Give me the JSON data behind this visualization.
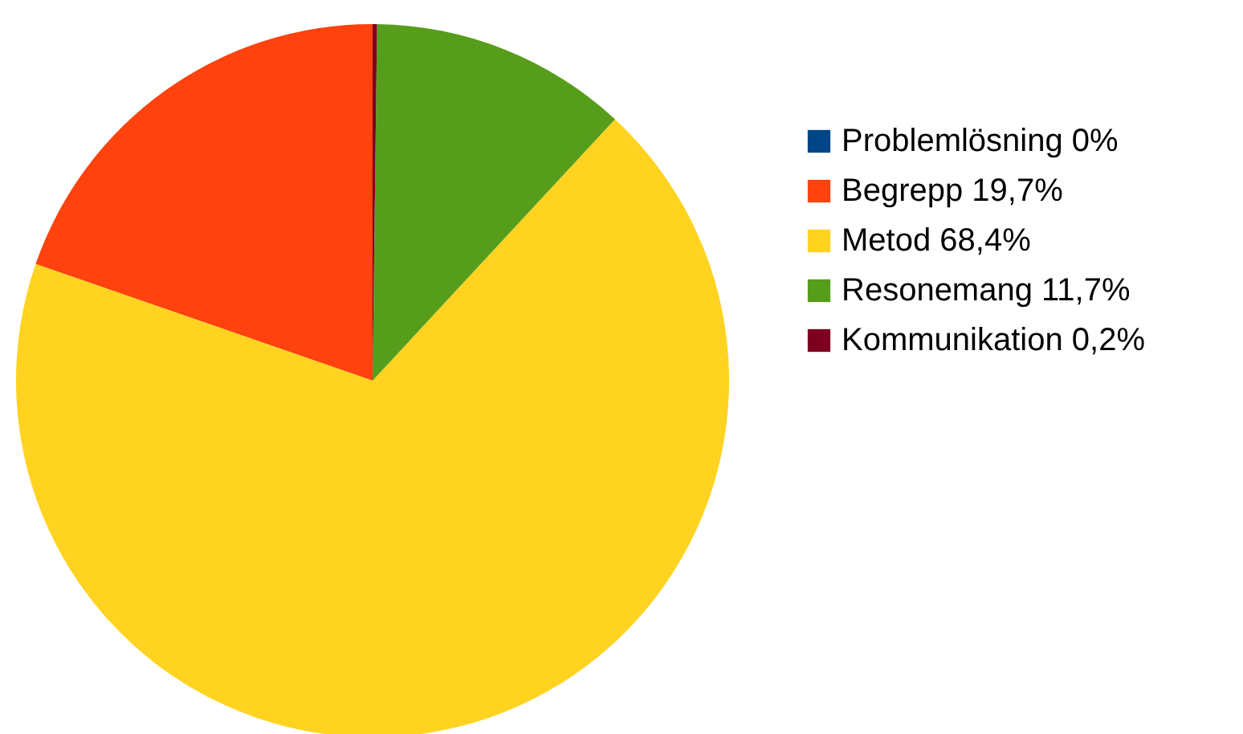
{
  "chart_data": {
    "type": "pie",
    "categories": [
      "Problemlösning 0%",
      "Begrepp 19,7%",
      "Metod 68,4%",
      "Resonemang 11,7%",
      "Kommunikation 0,2%"
    ],
    "values": [
      0,
      19.7,
      68.4,
      11.7,
      0.2
    ],
    "colors": [
      "#004586",
      "#ff420e",
      "#ffd320",
      "#579d1c",
      "#7e0021"
    ],
    "legend": "right"
  }
}
